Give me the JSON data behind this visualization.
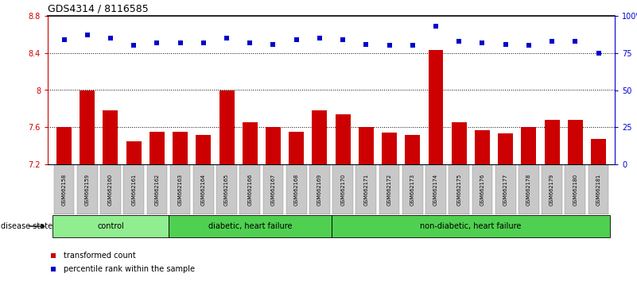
{
  "title": "GDS4314 / 8116585",
  "samples": [
    "GSM662158",
    "GSM662159",
    "GSM662160",
    "GSM662161",
    "GSM662162",
    "GSM662163",
    "GSM662164",
    "GSM662165",
    "GSM662166",
    "GSM662167",
    "GSM662168",
    "GSM662169",
    "GSM662170",
    "GSM662171",
    "GSM662172",
    "GSM662173",
    "GSM662174",
    "GSM662175",
    "GSM662176",
    "GSM662177",
    "GSM662178",
    "GSM662179",
    "GSM662180",
    "GSM662181"
  ],
  "bar_values": [
    7.6,
    8.0,
    7.78,
    7.45,
    7.55,
    7.55,
    7.52,
    8.0,
    7.65,
    7.6,
    7.55,
    7.78,
    7.74,
    7.6,
    7.54,
    7.52,
    8.43,
    7.65,
    7.57,
    7.53,
    7.6,
    7.68,
    7.68,
    7.47
  ],
  "dot_values": [
    84,
    87,
    85,
    80,
    82,
    82,
    82,
    85,
    82,
    81,
    84,
    85,
    84,
    81,
    80,
    80,
    93,
    83,
    82,
    81,
    80,
    83,
    83,
    75
  ],
  "bar_color": "#cc0000",
  "dot_color": "#0000cc",
  "ylim_left": [
    7.2,
    8.8
  ],
  "ylim_right": [
    0,
    100
  ],
  "yticks_left": [
    7.2,
    7.6,
    8.0,
    8.4,
    8.8
  ],
  "ytick_labels_left": [
    "7.2",
    "7.6",
    "8",
    "8.4",
    "8.8"
  ],
  "yticks_right": [
    0,
    25,
    50,
    75,
    100
  ],
  "ytick_labels_right": [
    "0",
    "25",
    "50",
    "75",
    "100%"
  ],
  "grid_values": [
    7.6,
    8.0,
    8.4
  ],
  "group_definitions": [
    {
      "label": "control",
      "start": 0,
      "end": 4,
      "color": "#90ee90"
    },
    {
      "label": "diabetic, heart failure",
      "start": 5,
      "end": 11,
      "color": "#50d050"
    },
    {
      "label": "non-diabetic, heart failure",
      "start": 12,
      "end": 23,
      "color": "#50d050"
    }
  ],
  "legend_bar_label": "transformed count",
  "legend_dot_label": "percentile rank within the sample",
  "disease_state_label": "disease state"
}
